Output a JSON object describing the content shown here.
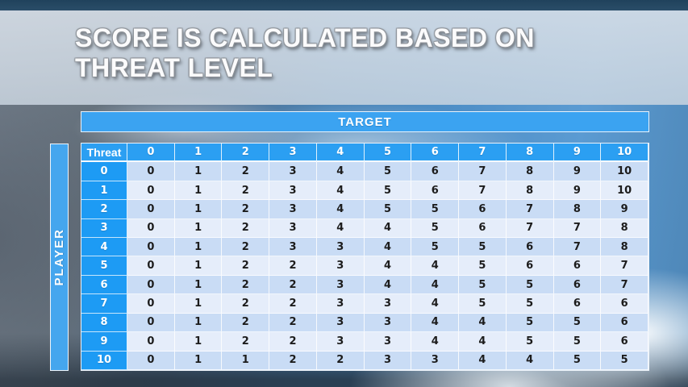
{
  "slide": {
    "title_line1": "SCORE IS CALCULATED BASED ON",
    "title_line2": "THREAT LEVEL"
  },
  "matrix": {
    "target_label": "TARGET",
    "player_label": "PLAYER",
    "corner_label": "Threat",
    "column_headers": [
      "0",
      "1",
      "2",
      "3",
      "4",
      "5",
      "6",
      "7",
      "8",
      "9",
      "10"
    ],
    "rows": [
      {
        "header": "0",
        "values": [
          0,
          1,
          2,
          3,
          4,
          5,
          6,
          7,
          8,
          9,
          10
        ]
      },
      {
        "header": "1",
        "values": [
          0,
          1,
          2,
          3,
          4,
          5,
          6,
          7,
          8,
          9,
          10
        ]
      },
      {
        "header": "2",
        "values": [
          0,
          1,
          2,
          3,
          4,
          5,
          5,
          6,
          7,
          8,
          9
        ]
      },
      {
        "header": "3",
        "values": [
          0,
          1,
          2,
          3,
          4,
          4,
          5,
          6,
          7,
          7,
          8
        ]
      },
      {
        "header": "4",
        "values": [
          0,
          1,
          2,
          3,
          3,
          4,
          5,
          5,
          6,
          7,
          8
        ]
      },
      {
        "header": "5",
        "values": [
          0,
          1,
          2,
          2,
          3,
          4,
          4,
          5,
          6,
          6,
          7
        ]
      },
      {
        "header": "6",
        "values": [
          0,
          1,
          2,
          2,
          3,
          4,
          4,
          5,
          5,
          6,
          7
        ]
      },
      {
        "header": "7",
        "values": [
          0,
          1,
          2,
          2,
          3,
          3,
          4,
          5,
          5,
          6,
          6
        ]
      },
      {
        "header": "8",
        "values": [
          0,
          1,
          2,
          2,
          3,
          3,
          4,
          4,
          5,
          5,
          6
        ]
      },
      {
        "header": "9",
        "values": [
          0,
          1,
          2,
          2,
          3,
          3,
          4,
          4,
          5,
          5,
          6
        ]
      },
      {
        "header": "10",
        "values": [
          0,
          1,
          1,
          2,
          2,
          3,
          3,
          4,
          4,
          5,
          5
        ]
      }
    ]
  },
  "colors": {
    "header_blue": "#2b9ff2",
    "row_header_blue": "#1d9bf4",
    "bar_blue": "#45a6ee",
    "row_even": "#c9dcf5",
    "row_odd": "#e5edfa",
    "cell_text": "#1c1c1c",
    "title_text": "#fbfbfc"
  },
  "chart_data": {
    "type": "table",
    "title": "Score matrix by player threat vs target threat",
    "corner": "Threat",
    "columns": [
      "0",
      "1",
      "2",
      "3",
      "4",
      "5",
      "6",
      "7",
      "8",
      "9",
      "10"
    ],
    "rows": [
      "0",
      "1",
      "2",
      "3",
      "4",
      "5",
      "6",
      "7",
      "8",
      "9",
      "10"
    ],
    "values": [
      [
        0,
        1,
        2,
        3,
        4,
        5,
        6,
        7,
        8,
        9,
        10
      ],
      [
        0,
        1,
        2,
        3,
        4,
        5,
        6,
        7,
        8,
        9,
        10
      ],
      [
        0,
        1,
        2,
        3,
        4,
        5,
        5,
        6,
        7,
        8,
        9
      ],
      [
        0,
        1,
        2,
        3,
        4,
        4,
        5,
        6,
        7,
        7,
        8
      ],
      [
        0,
        1,
        2,
        3,
        3,
        4,
        5,
        5,
        6,
        7,
        8
      ],
      [
        0,
        1,
        2,
        2,
        3,
        4,
        4,
        5,
        6,
        6,
        7
      ],
      [
        0,
        1,
        2,
        2,
        3,
        4,
        4,
        5,
        5,
        6,
        7
      ],
      [
        0,
        1,
        2,
        2,
        3,
        3,
        4,
        5,
        5,
        6,
        6
      ],
      [
        0,
        1,
        2,
        2,
        3,
        3,
        4,
        4,
        5,
        5,
        6
      ],
      [
        0,
        1,
        2,
        2,
        3,
        3,
        4,
        4,
        5,
        5,
        6
      ],
      [
        0,
        1,
        1,
        2,
        2,
        3,
        3,
        4,
        4,
        5,
        5
      ]
    ]
  }
}
